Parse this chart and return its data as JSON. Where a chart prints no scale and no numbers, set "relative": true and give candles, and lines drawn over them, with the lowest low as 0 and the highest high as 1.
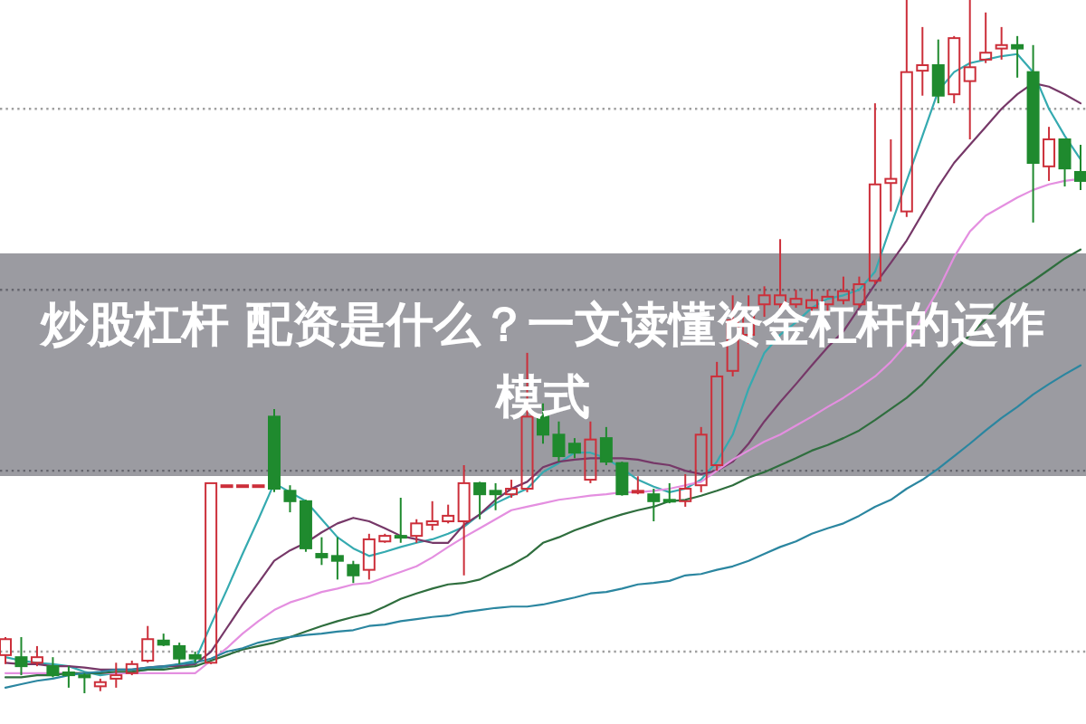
{
  "chart_data": {
    "type": "candlestick",
    "title": "炒股杠杆 配资是什么？一文读懂资金杠杆的运作模式",
    "relative": true,
    "categories": [
      null,
      null,
      null,
      null,
      null,
      null,
      null,
      null,
      null,
      null,
      null,
      null,
      null,
      null,
      null,
      null,
      null,
      null,
      null,
      null,
      null,
      null,
      null,
      null,
      null,
      null,
      null,
      null,
      null,
      null,
      null,
      null,
      null,
      null,
      null,
      null,
      null,
      null,
      null,
      null,
      null,
      null,
      null,
      null,
      null,
      null,
      null,
      null,
      null,
      null,
      null,
      null,
      null,
      null,
      null,
      null,
      null,
      null,
      null,
      null,
      null,
      null,
      null,
      null,
      null,
      null,
      null,
      null,
      null
    ],
    "ohlc": [
      [
        0.055,
        0.081,
        0.042,
        0.078
      ],
      [
        0.052,
        0.081,
        0.026,
        0.039
      ],
      [
        0.044,
        0.068,
        0.039,
        0.052
      ],
      [
        0.039,
        0.052,
        0.023,
        0.026
      ],
      [
        0.03,
        0.039,
        0.008,
        0.026
      ],
      [
        0.026,
        0.029,
        0,
        0.023
      ],
      [
        0.01,
        0.021,
        0.003,
        0.016
      ],
      [
        0.021,
        0.044,
        0.008,
        0.026
      ],
      [
        0.029,
        0.047,
        0.026,
        0.042
      ],
      [
        0.047,
        0.097,
        0.044,
        0.078
      ],
      [
        0.076,
        0.086,
        0.068,
        0.07
      ],
      [
        0.068,
        0.073,
        0.042,
        0.05
      ],
      [
        0.055,
        0.06,
        0.044,
        0.05
      ],
      [
        0.044,
        0.303,
        0.042,
        0.303
      ],
      [
        0.3,
        0.3,
        0.3,
        0.3
      ],
      [
        0.3,
        0.3,
        0.3,
        0.3
      ],
      [
        0.3,
        0.3,
        0.3,
        0.3
      ],
      [
        0.399,
        0.41,
        0.29,
        0.295
      ],
      [
        0.292,
        0.3,
        0.261,
        0.277
      ],
      [
        0.277,
        0.279,
        0.204,
        0.209
      ],
      [
        0.201,
        0.225,
        0.185,
        0.196
      ],
      [
        0.198,
        0.225,
        0.164,
        0.191
      ],
      [
        0.185,
        0.191,
        0.159,
        0.17
      ],
      [
        0.178,
        0.23,
        0.164,
        0.222
      ],
      [
        0.219,
        0.23,
        0.217,
        0.227
      ],
      [
        0.227,
        0.282,
        0.217,
        0.225
      ],
      [
        0.227,
        0.251,
        0.217,
        0.245
      ],
      [
        0.243,
        0.277,
        0.235,
        0.248
      ],
      [
        0.248,
        0.272,
        0.245,
        0.256
      ],
      [
        0.248,
        0.329,
        0.17,
        0.303
      ],
      [
        0.303,
        0.305,
        0.251,
        0.287
      ],
      [
        0.292,
        0.303,
        0.264,
        0.287
      ],
      [
        0.287,
        0.308,
        0.282,
        0.295
      ],
      [
        0.295,
        0.491,
        0.29,
        0.399
      ],
      [
        0.399,
        0.418,
        0.36,
        0.373
      ],
      [
        0.373,
        0.392,
        0.334,
        0.342
      ],
      [
        0.36,
        0.368,
        0.339,
        0.347
      ],
      [
        0.308,
        0.392,
        0.303,
        0.366
      ],
      [
        0.368,
        0.384,
        0.329,
        0.334
      ],
      [
        0.332,
        0.334,
        0.285,
        0.287
      ],
      [
        0.29,
        0.313,
        0.287,
        0.292
      ],
      [
        0.287,
        0.295,
        0.248,
        0.277
      ],
      [
        0.279,
        0.303,
        0.274,
        0.277
      ],
      [
        0.277,
        0.316,
        0.269,
        0.295
      ],
      [
        0.3,
        0.384,
        0.29,
        0.373
      ],
      [
        0.329,
        0.478,
        0.321,
        0.457
      ],
      [
        0.465,
        0.574,
        0.457,
        0.538
      ],
      [
        0.517,
        0.574,
        0.504,
        0.556
      ],
      [
        0.561,
        0.587,
        0.543,
        0.574
      ],
      [
        0.561,
        0.655,
        0.548,
        0.574
      ],
      [
        0.561,
        0.582,
        0.556,
        0.569
      ],
      [
        0.556,
        0.582,
        0.548,
        0.567
      ],
      [
        0.561,
        0.582,
        0.551,
        0.572
      ],
      [
        0.567,
        0.601,
        0.561,
        0.58
      ],
      [
        0.561,
        0.601,
        0.556,
        0.59
      ],
      [
        0.595,
        0.851,
        0.59,
        0.734
      ],
      [
        0.736,
        0.799,
        0.695,
        0.742
      ],
      [
        0.695,
        1,
        0.687,
        0.896
      ],
      [
        0.898,
        0.961,
        0.862,
        0.906
      ],
      [
        0.906,
        0.943,
        0.851,
        0.862
      ],
      [
        0.864,
        0.948,
        0.851,
        0.945
      ],
      [
        0.883,
        1,
        0.799,
        0.903
      ],
      [
        0.914,
        0.982,
        0.909,
        0.924
      ],
      [
        0.93,
        0.961,
        0.914,
        0.935
      ],
      [
        0.935,
        0.948,
        0.888,
        0.93
      ],
      [
        0.896,
        0.935,
        0.679,
        0.765
      ],
      [
        0.76,
        0.817,
        0.739,
        0.799
      ],
      [
        0.799,
        0.799,
        0.731,
        0.757
      ],
      [
        0.752,
        0.791,
        0.726,
        0.739
      ]
    ],
    "colors": [
      "#cc2f3a",
      "#1f8a2e",
      "#cc2f3a",
      "#1f8a2e",
      "#1f8a2e",
      "#1f8a2e",
      "#cc2f3a",
      "#cc2f3a",
      "#cc2f3a",
      "#cc2f3a",
      "#1f8a2e",
      "#1f8a2e",
      "#1f8a2e",
      "#cc2f3a",
      "#cc2f3a",
      "#cc2f3a",
      "#cc2f3a",
      "#1f8a2e",
      "#1f8a2e",
      "#1f8a2e",
      "#1f8a2e",
      "#1f8a2e",
      "#1f8a2e",
      "#cc2f3a",
      "#cc2f3a",
      "#1f8a2e",
      "#cc2f3a",
      "#cc2f3a",
      "#cc2f3a",
      "#cc2f3a",
      "#1f8a2e",
      "#1f8a2e",
      "#cc2f3a",
      "#cc2f3a",
      "#1f8a2e",
      "#1f8a2e",
      "#1f8a2e",
      "#cc2f3a",
      "#1f8a2e",
      "#1f8a2e",
      "#cc2f3a",
      "#1f8a2e",
      "#1f8a2e",
      "#cc2f3a",
      "#cc2f3a",
      "#cc2f3a",
      "#cc2f3a",
      "#cc2f3a",
      "#cc2f3a",
      "#cc2f3a",
      "#cc2f3a",
      "#cc2f3a",
      "#cc2f3a",
      "#cc2f3a",
      "#cc2f3a",
      "#cc2f3a",
      "#cc2f3a",
      "#cc2f3a",
      "#cc2f3a",
      "#1f8a2e",
      "#cc2f3a",
      "#cc2f3a",
      "#cc2f3a",
      "#cc2f3a",
      "#1f8a2e",
      "#1f8a2e",
      "#cc2f3a",
      "#1f8a2e",
      "#1f8a2e"
    ],
    "series": [
      {
        "type": "line",
        "color": "#35aab0",
        "values": [
          0.052,
          0.047,
          0.044,
          0.042,
          0.039,
          0.031,
          0.026,
          0.029,
          0.031,
          0.034,
          0.037,
          0.042,
          0.047,
          0.099,
          0.149,
          0.201,
          0.251,
          0.303,
          0.29,
          0.277,
          0.251,
          0.225,
          0.209,
          0.198,
          0.204,
          0.211,
          0.217,
          0.222,
          0.23,
          0.24,
          0.258,
          0.274,
          0.285,
          0.295,
          0.319,
          0.332,
          0.347,
          0.347,
          0.339,
          0.324,
          0.308,
          0.298,
          0.29,
          0.295,
          0.308,
          0.334,
          0.373,
          0.439,
          0.491,
          0.517,
          0.535,
          0.556,
          0.569,
          0.574,
          0.582,
          0.608,
          0.674,
          0.739,
          0.804,
          0.869,
          0.896,
          0.909,
          0.914,
          0.919,
          0.922,
          0.896,
          0.843,
          0.804,
          0.77
        ]
      },
      {
        "type": "line",
        "color": "#763868",
        "values": [
          0.044,
          0.042,
          0.042,
          0.039,
          0.039,
          0.037,
          0.034,
          0.034,
          0.034,
          0.037,
          0.039,
          0.039,
          0.042,
          0.06,
          0.094,
          0.128,
          0.159,
          0.191,
          0.206,
          0.217,
          0.232,
          0.245,
          0.253,
          0.248,
          0.238,
          0.227,
          0.222,
          0.217,
          0.217,
          0.243,
          0.258,
          0.279,
          0.295,
          0.305,
          0.326,
          0.334,
          0.337,
          0.339,
          0.339,
          0.339,
          0.337,
          0.332,
          0.329,
          0.321,
          0.316,
          0.321,
          0.334,
          0.36,
          0.392,
          0.42,
          0.446,
          0.473,
          0.499,
          0.522,
          0.556,
          0.59,
          0.621,
          0.653,
          0.692,
          0.731,
          0.765,
          0.791,
          0.817,
          0.843,
          0.864,
          0.88,
          0.875,
          0.864,
          0.851
        ]
      },
      {
        "type": "line",
        "color": "#e48fe0",
        "values": [
          0.029,
          0.029,
          0.029,
          0.029,
          0.029,
          0.029,
          0.029,
          0.029,
          0.029,
          0.029,
          0.029,
          0.029,
          0.029,
          0.047,
          0.065,
          0.086,
          0.104,
          0.12,
          0.131,
          0.138,
          0.146,
          0.151,
          0.157,
          0.159,
          0.167,
          0.175,
          0.183,
          0.196,
          0.211,
          0.225,
          0.238,
          0.251,
          0.264,
          0.269,
          0.274,
          0.279,
          0.282,
          0.285,
          0.287,
          0.29,
          0.29,
          0.292,
          0.295,
          0.3,
          0.305,
          0.321,
          0.337,
          0.35,
          0.363,
          0.373,
          0.386,
          0.399,
          0.413,
          0.426,
          0.441,
          0.457,
          0.478,
          0.504,
          0.543,
          0.582,
          0.629,
          0.666,
          0.689,
          0.702,
          0.715,
          0.726,
          0.734,
          0.739,
          0.742
        ]
      },
      {
        "type": "line",
        "color": "#2f6e3e",
        "values": [
          0.023,
          0.023,
          0.026,
          0.026,
          0.029,
          0.029,
          0.029,
          0.031,
          0.031,
          0.034,
          0.034,
          0.037,
          0.039,
          0.047,
          0.055,
          0.063,
          0.068,
          0.073,
          0.081,
          0.089,
          0.097,
          0.104,
          0.11,
          0.115,
          0.125,
          0.136,
          0.144,
          0.151,
          0.157,
          0.159,
          0.164,
          0.175,
          0.185,
          0.198,
          0.217,
          0.225,
          0.235,
          0.243,
          0.251,
          0.258,
          0.264,
          0.269,
          0.277,
          0.279,
          0.285,
          0.292,
          0.3,
          0.311,
          0.319,
          0.329,
          0.339,
          0.35,
          0.358,
          0.368,
          0.379,
          0.394,
          0.41,
          0.426,
          0.446,
          0.47,
          0.493,
          0.517,
          0.54,
          0.564,
          0.58,
          0.595,
          0.611,
          0.627,
          0.64
        ]
      },
      {
        "type": "line",
        "color": "#2b86a0",
        "values": [
          0.008,
          0.013,
          0.018,
          0.021,
          0.026,
          0.029,
          0.031,
          0.034,
          0.034,
          0.037,
          0.039,
          0.042,
          0.044,
          0.05,
          0.06,
          0.065,
          0.073,
          0.078,
          0.081,
          0.084,
          0.086,
          0.089,
          0.091,
          0.097,
          0.099,
          0.104,
          0.107,
          0.11,
          0.112,
          0.117,
          0.12,
          0.123,
          0.125,
          0.125,
          0.128,
          0.133,
          0.138,
          0.144,
          0.146,
          0.151,
          0.157,
          0.159,
          0.162,
          0.17,
          0.172,
          0.178,
          0.183,
          0.191,
          0.201,
          0.211,
          0.219,
          0.23,
          0.238,
          0.245,
          0.256,
          0.269,
          0.279,
          0.295,
          0.308,
          0.324,
          0.342,
          0.36,
          0.379,
          0.397,
          0.413,
          0.431,
          0.446,
          0.46,
          0.473
        ]
      }
    ],
    "ref_lines": [
      {
        "axis": "y",
        "value": 0.843,
        "color": "#a0a0a0",
        "line_style": "dotted"
      },
      {
        "axis": "y",
        "value": 0.582,
        "color": "#66666e",
        "line_style": "dotted"
      },
      {
        "axis": "y",
        "value": 0.321,
        "color": "#66666e",
        "line_style": "dotted"
      },
      {
        "axis": "y",
        "value": 0.06,
        "color": "#a0a0a0",
        "line_style": "dotted"
      }
    ]
  }
}
